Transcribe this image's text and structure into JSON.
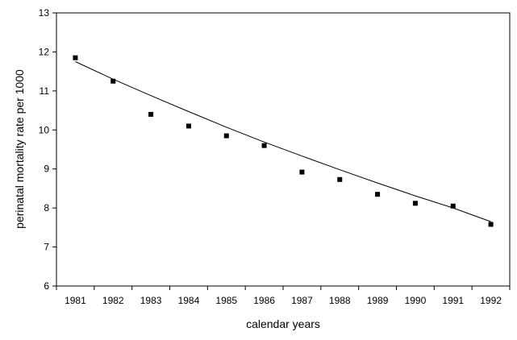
{
  "chart_data": {
    "type": "scatter",
    "title": "",
    "xlabel": "calendar years",
    "ylabel": "perinatal mortality rate per 1000",
    "categories": [
      "1981",
      "1982",
      "1983",
      "1984",
      "1985",
      "1986",
      "1987",
      "1988",
      "1989",
      "1990",
      "1991",
      "1992"
    ],
    "ylim": [
      6,
      13
    ],
    "yticks": [
      6,
      7,
      8,
      9,
      10,
      11,
      12,
      13
    ],
    "grid": false,
    "legend": "none",
    "series": [
      {
        "values": [
          11.85,
          11.25,
          10.4,
          10.1,
          9.85,
          9.6,
          8.92,
          8.73,
          8.35,
          8.12,
          8.05,
          7.58
        ]
      }
    ],
    "trendline": {
      "type": "exponential",
      "values": [
        11.75,
        11.3,
        10.88,
        10.47,
        10.07,
        9.69,
        9.33,
        8.98,
        8.64,
        8.31,
        8.0,
        7.65
      ]
    },
    "colors": {
      "marker": "#000000",
      "line": "#000000",
      "axis": "#000000"
    }
  }
}
